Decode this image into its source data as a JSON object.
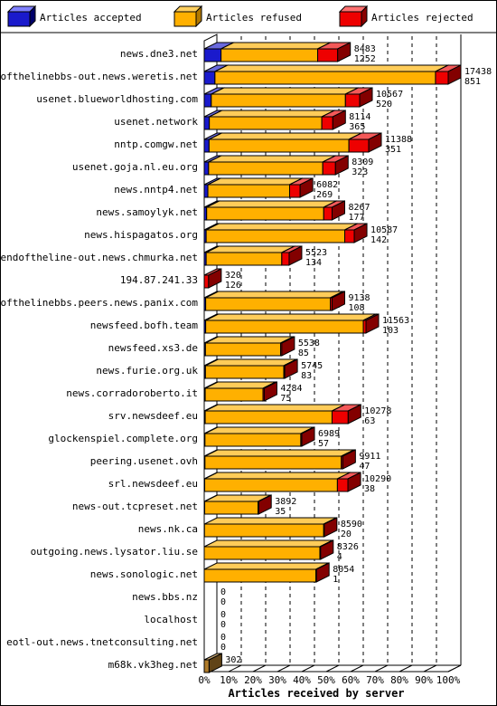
{
  "legend": {
    "accepted": "Articles accepted",
    "refused": "Articles refused",
    "rejected": "Articles rejected"
  },
  "colors": {
    "accepted": "#1a1acc",
    "refused": "#ffb000",
    "rejected": "#ee0000",
    "single": "#b07c2a"
  },
  "chart_data": {
    "type": "bar",
    "orientation": "horizontal",
    "stacked": true,
    "title": "",
    "xlabel": "Articles received by server",
    "x_ticks": [
      "0%",
      "10%",
      "20%",
      "30%",
      "40%",
      "50%",
      "60%",
      "70%",
      "80%",
      "90%",
      "100%"
    ],
    "xlim": [
      0,
      100
    ],
    "grid": true,
    "legend_position": "top",
    "series": [
      {
        "name": "Articles accepted"
      },
      {
        "name": "Articles refused"
      },
      {
        "name": "Articles rejected"
      }
    ],
    "rows": [
      {
        "server": "news.dne3.net",
        "total": "8483",
        "second": "1252",
        "accepted_pct": 6.9,
        "refused_pct": 39.6,
        "rejected_pct": 8.2
      },
      {
        "server": "endofthelinebbs-out.news.weretis.net",
        "total": "17438",
        "second": "851",
        "accepted_pct": 4.4,
        "refused_pct": 90.4,
        "rejected_pct": 5.2
      },
      {
        "server": "usenet.blueworldhosting.com",
        "total": "10567",
        "second": "520",
        "accepted_pct": 2.9,
        "refused_pct": 55.0,
        "rejected_pct": 5.8
      },
      {
        "server": "usenet.network",
        "total": "8114",
        "second": "365",
        "accepted_pct": 2.1,
        "refused_pct": 46.1,
        "rejected_pct": 4.5
      },
      {
        "server": "nntp.comgw.net",
        "total": "11388",
        "second": "351",
        "accepted_pct": 2.0,
        "refused_pct": 57.3,
        "rejected_pct": 8.1
      },
      {
        "server": "usenet.goja.nl.eu.org",
        "total": "8309",
        "second": "323",
        "accepted_pct": 1.8,
        "refused_pct": 46.8,
        "rejected_pct": 5.2
      },
      {
        "server": "news.nntp4.net",
        "total": "6082",
        "second": "269",
        "accepted_pct": 1.5,
        "refused_pct": 33.5,
        "rejected_pct": 4.3
      },
      {
        "server": "news.samoylyk.net",
        "total": "8267",
        "second": "177",
        "accepted_pct": 1.0,
        "refused_pct": 48.0,
        "rejected_pct": 3.4
      },
      {
        "server": "news.hispagatos.org",
        "total": "10587",
        "second": "142",
        "accepted_pct": 0.8,
        "refused_pct": 56.8,
        "rejected_pct": 3.9
      },
      {
        "server": "endoftheline-out.news.chmurka.net",
        "total": "5523",
        "second": "134",
        "accepted_pct": 0.8,
        "refused_pct": 31.0,
        "rejected_pct": 3.0
      },
      {
        "server": "194.87.241.33",
        "total": "320",
        "second": "126",
        "accepted_pct": 0.0,
        "refused_pct": 0.0,
        "rejected_pct": 1.8
      },
      {
        "server": "endofthelinebbs.peers.news.panix.com",
        "total": "9138",
        "second": "108",
        "accepted_pct": 0.6,
        "refused_pct": 51.1,
        "rejected_pct": 0.7
      },
      {
        "server": "newsfeed.bofh.team",
        "total": "11563",
        "second": "103",
        "accepted_pct": 0.6,
        "refused_pct": 64.6,
        "rejected_pct": 1.1
      },
      {
        "server": "newsfeed.xs3.de",
        "total": "5538",
        "second": "85",
        "accepted_pct": 0.5,
        "refused_pct": 30.8,
        "rejected_pct": 0.5
      },
      {
        "server": "news.furie.org.uk",
        "total": "5745",
        "second": "83",
        "accepted_pct": 0.5,
        "refused_pct": 32.1,
        "rejected_pct": 0.4
      },
      {
        "server": "news.corradoroberto.it",
        "total": "4284",
        "second": "75",
        "accepted_pct": 0.4,
        "refused_pct": 23.7,
        "rejected_pct": 0.5
      },
      {
        "server": "srv.newsdeef.eu",
        "total": "10278",
        "second": "63",
        "accepted_pct": 0.4,
        "refused_pct": 52.0,
        "rejected_pct": 6.6
      },
      {
        "server": "glockenspiel.complete.org",
        "total": "6989",
        "second": "57",
        "accepted_pct": 0.3,
        "refused_pct": 39.3,
        "rejected_pct": 0.4
      },
      {
        "server": "peering.usenet.ovh",
        "total": "9911",
        "second": "47",
        "accepted_pct": 0.3,
        "refused_pct": 55.9,
        "rejected_pct": 0.6
      },
      {
        "server": "srl.newsdeef.eu",
        "total": "10290",
        "second": "38",
        "accepted_pct": 0.2,
        "refused_pct": 54.4,
        "rejected_pct": 4.3
      },
      {
        "server": "news-out.tcpreset.net",
        "total": "3892",
        "second": "35",
        "accepted_pct": 0.2,
        "refused_pct": 21.9,
        "rejected_pct": 0.2
      },
      {
        "server": "news.nk.ca",
        "total": "8590",
        "second": "20",
        "accepted_pct": 0.1,
        "refused_pct": 48.9,
        "rejected_pct": 0.2
      },
      {
        "server": "outgoing.news.lysator.liu.se",
        "total": "8326",
        "second": "4",
        "accepted_pct": 0.0,
        "refused_pct": 47.4,
        "rejected_pct": 0.3
      },
      {
        "server": "news.sonologic.net",
        "total": "8054",
        "second": "1",
        "accepted_pct": 0.0,
        "refused_pct": 45.8,
        "rejected_pct": 0.2
      },
      {
        "server": "news.bbs.nz",
        "total": "0",
        "second": "0",
        "accepted_pct": 0,
        "refused_pct": 0,
        "rejected_pct": 0
      },
      {
        "server": "localhost",
        "total": "0",
        "second": "0",
        "accepted_pct": 0,
        "refused_pct": 0,
        "rejected_pct": 0
      },
      {
        "server": "eotl-out.news.tnetconsulting.net",
        "total": "0",
        "second": "0",
        "accepted_pct": 0,
        "refused_pct": 0,
        "rejected_pct": 0
      },
      {
        "server": "m68k.vk3heg.net",
        "total": "302",
        "second": "",
        "accepted_pct": 0,
        "refused_pct": 0,
        "rejected_pct": 0,
        "single_pct": 2.0
      }
    ]
  }
}
